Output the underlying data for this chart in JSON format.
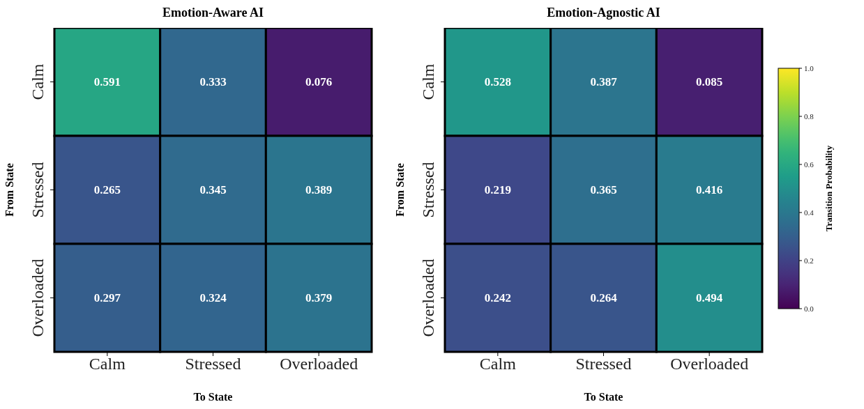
{
  "chart_data": [
    {
      "type": "heatmap",
      "title": "Emotion-Aware AI",
      "xlabel": "To State",
      "ylabel": "From State",
      "categories": [
        "Calm",
        "Stressed",
        "Overloaded"
      ],
      "y_categories": [
        "Calm",
        "Stressed",
        "Overloaded"
      ],
      "cells": [
        [
          0.591,
          0.333,
          0.076
        ],
        [
          0.265,
          0.345,
          0.389
        ],
        [
          0.297,
          0.324,
          0.379
        ]
      ],
      "data_labels": true
    },
    {
      "type": "heatmap",
      "title": "Emotion-Agnostic AI",
      "xlabel": "To State",
      "ylabel": "From State",
      "clabel": "Transition Probability",
      "categories": [
        "Calm",
        "Stressed",
        "Overloaded"
      ],
      "y_categories": [
        "Calm",
        "Stressed",
        "Overloaded"
      ],
      "cells": [
        [
          0.528,
          0.387,
          0.085
        ],
        [
          0.219,
          0.365,
          0.416
        ],
        [
          0.242,
          0.264,
          0.494
        ]
      ],
      "clim": [
        0,
        1
      ],
      "cticks": [
        {
          "value": 0,
          "label": "0.0"
        },
        {
          "value": 0.2,
          "label": "0.2"
        },
        {
          "value": 0.4,
          "label": "0.4"
        },
        {
          "value": 0.6,
          "label": "0.6"
        },
        {
          "value": 0.8,
          "label": "0.8"
        },
        {
          "value": 1,
          "label": "1.0"
        }
      ],
      "data_labels": true
    }
  ]
}
